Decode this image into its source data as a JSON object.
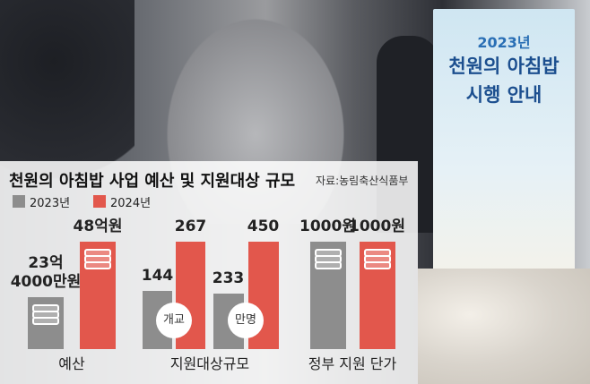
{
  "photo_text": {
    "poster_year": "2023년",
    "poster_title": "천원의 아침밥",
    "poster_subtitle": "시행 안내"
  },
  "chart_data": {
    "type": "bar",
    "title": "천원의 아침밥 사업 예산 및 지원대상 규모",
    "source": "자료:농림축산식품부",
    "categories": [
      "예산",
      "지원대상규모",
      null,
      "정부 지원 단가"
    ],
    "series": [
      {
        "name": "2023년",
        "color": "#8d8d8d",
        "values": [
          23.4,
          144,
          233,
          1000
        ],
        "value_labels": [
          "23억\n4000만원",
          "144",
          "233",
          "1000원"
        ]
      },
      {
        "name": "2024년",
        "color": "#e2574c",
        "values": [
          48,
          267,
          450,
          1000
        ],
        "value_labels": [
          "48억원",
          "267",
          "450",
          "1000원"
        ]
      }
    ],
    "annotations": [
      "개교",
      "만명"
    ],
    "legend": "top-left"
  }
}
